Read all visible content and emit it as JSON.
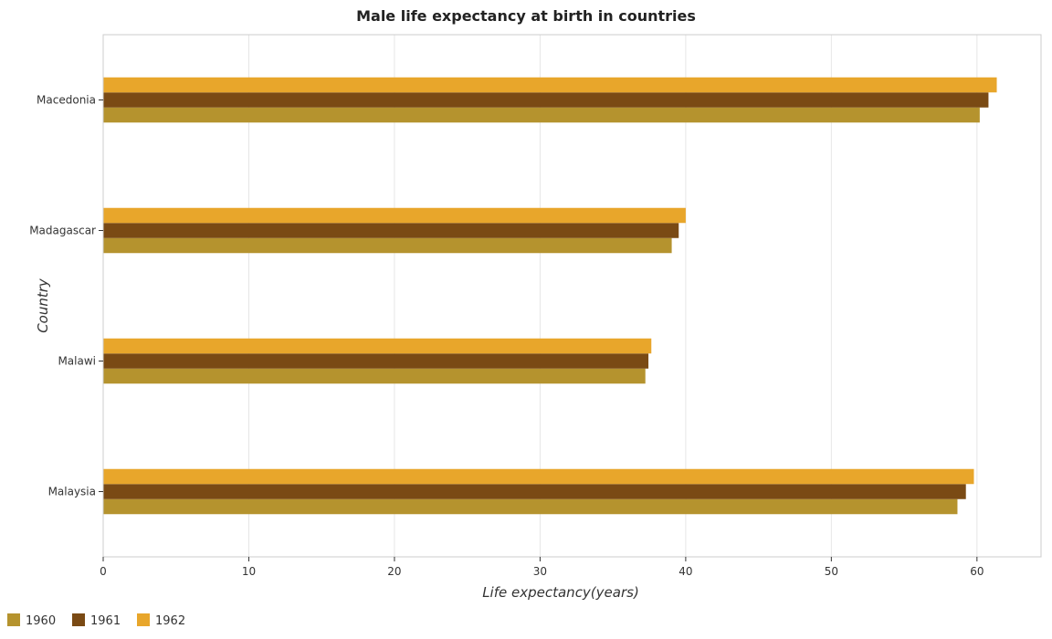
{
  "chart_data": {
    "type": "bar",
    "orientation": "horizontal",
    "title": "Male life expectancy at birth in countries",
    "xlabel": "Life expectancy(years)",
    "ylabel": "Country",
    "categories": [
      "Macedonia",
      "Madagascar",
      "Malawi",
      "Malaysia"
    ],
    "series": [
      {
        "name": "1960",
        "color": "#b5932e",
        "values": [
          60.19,
          39.04,
          37.23,
          58.66
        ]
      },
      {
        "name": "1961",
        "color": "#7a4a14",
        "values": [
          60.79,
          39.52,
          37.44,
          59.24
        ]
      },
      {
        "name": "1962",
        "color": "#e8a62b",
        "values": [
          61.36,
          40.0,
          37.64,
          59.79
        ]
      }
    ],
    "xlim": [
      0,
      64.4
    ],
    "xticks": [
      0,
      10,
      20,
      30,
      40,
      50,
      60
    ],
    "grid": true,
    "legend_position": "bottom-left"
  }
}
